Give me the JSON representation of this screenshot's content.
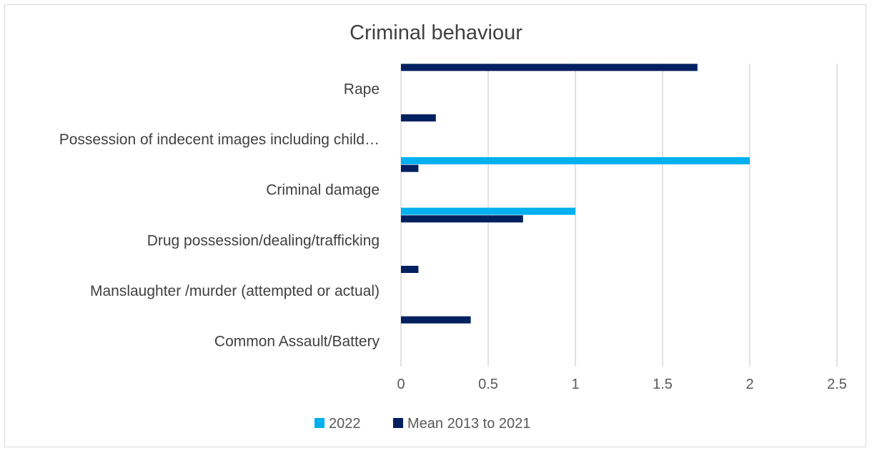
{
  "chart_data": {
    "type": "bar",
    "orientation": "horizontal",
    "title": "Criminal behaviour",
    "categories": [
      "Rape",
      "Possession of indecent images including child…",
      "Criminal damage",
      "Drug possession/dealing/trafficking",
      "Manslaughter /murder (attempted or actual)",
      "Common Assault/Battery"
    ],
    "series": [
      {
        "name": "2022",
        "color": "#00b0f0",
        "values": [
          0,
          2,
          1,
          0,
          0,
          0
        ]
      },
      {
        "name": "Mean 2013 to 2021",
        "color": "#002060",
        "values": [
          1.7,
          0.2,
          0.1,
          0.7,
          0.1,
          0.4
        ]
      }
    ],
    "extra_bars_note_free": true,
    "xlim": [
      0,
      2.5
    ],
    "xticks": [
      "0",
      "0.5",
      "1",
      "1.5",
      "2",
      "2.5"
    ],
    "grid": true,
    "legend_position": "bottom"
  }
}
